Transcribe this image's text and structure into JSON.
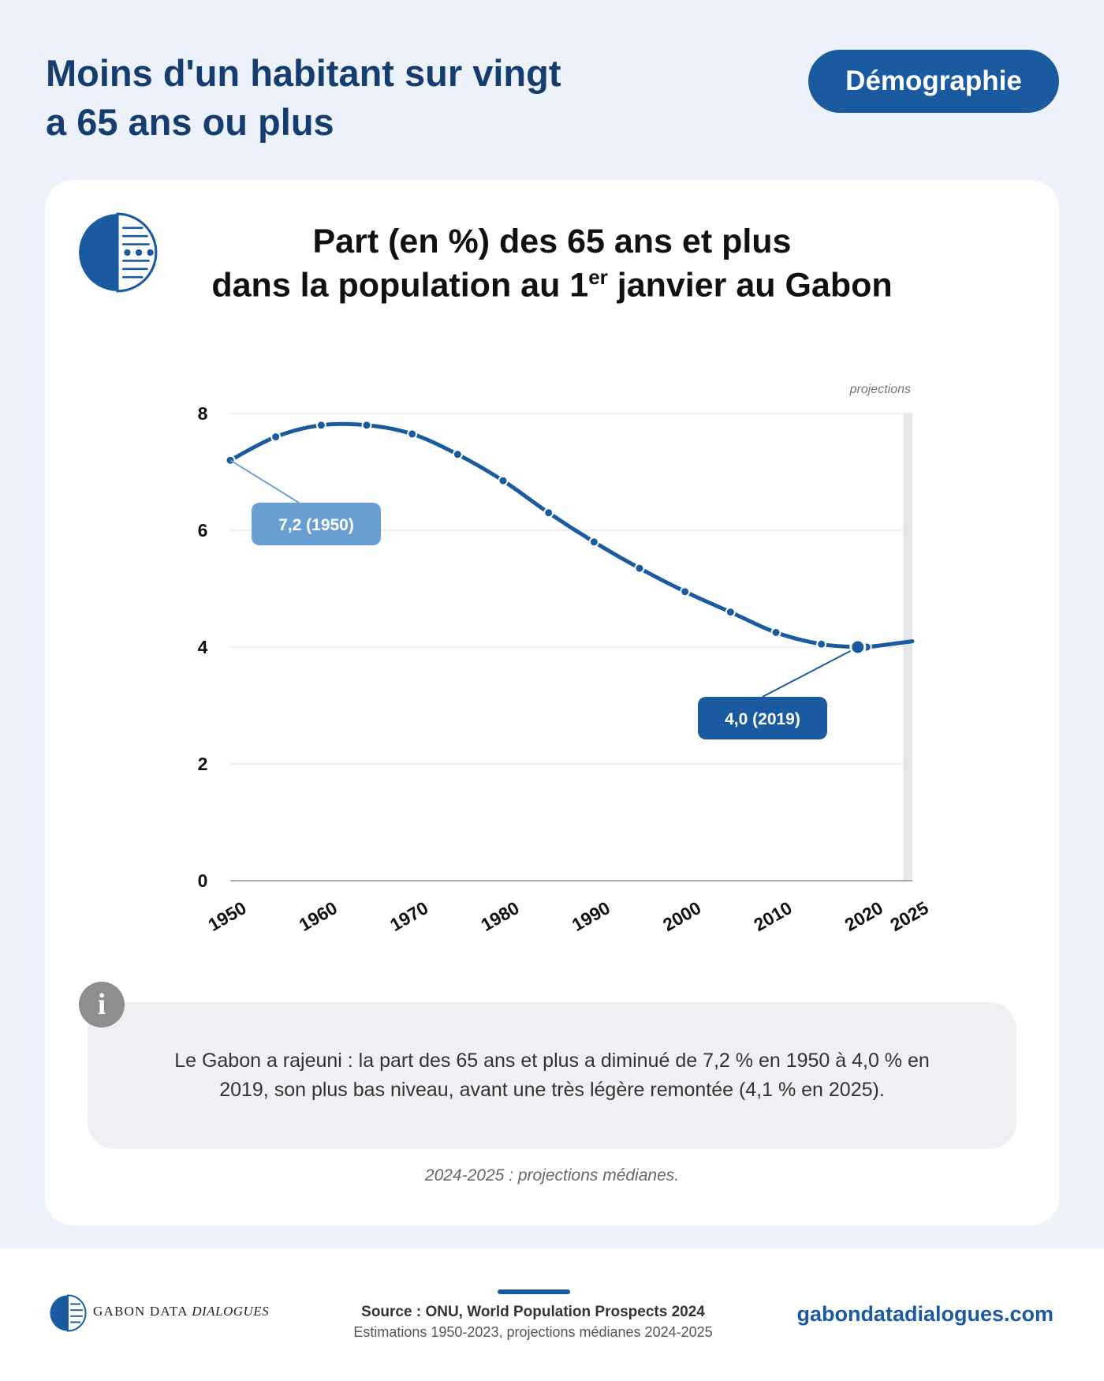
{
  "header": {
    "title_line1": "Moins d'un habitant sur vingt",
    "title_line2": "a 65 ans ou plus",
    "topic": "Démographie"
  },
  "chart_title": {
    "line1": "Part (en %) des 65 ans et plus",
    "line2_before": "dans la population au 1",
    "line2_sup": "er",
    "line2_after": " janvier au Gabon"
  },
  "chart_data": {
    "type": "line",
    "title": "Part (en %) des 65 ans et plus dans la population au 1er janvier au Gabon",
    "xlabel": "",
    "ylabel": "",
    "xlim": [
      1950,
      2025
    ],
    "ylim": [
      0,
      8
    ],
    "x_ticks": [
      "1950",
      "1960",
      "1970",
      "1980",
      "1990",
      "2000",
      "2010",
      "2020",
      "2025"
    ],
    "y_ticks": [
      "0",
      "2",
      "4",
      "6",
      "8"
    ],
    "grid": true,
    "projection_label": "projections",
    "projection_range": [
      2024,
      2025
    ],
    "series": [
      {
        "x": [
          1950,
          1955,
          1960,
          1965,
          1970,
          1975,
          1980,
          1985,
          1990,
          1995,
          2000,
          2005,
          2010,
          2015,
          2019,
          2020,
          2025
        ],
        "values": [
          7.2,
          7.6,
          7.8,
          7.8,
          7.65,
          7.3,
          6.85,
          6.3,
          5.8,
          5.35,
          4.95,
          4.6,
          4.25,
          4.05,
          4.0,
          4.0,
          4.1
        ],
        "marker_x": [
          1950,
          1955,
          1960,
          1965,
          1970,
          1975,
          1980,
          1985,
          1990,
          1995,
          2000,
          2005,
          2010,
          2015,
          2020
        ]
      }
    ],
    "annotations": [
      {
        "x": 1950,
        "y": 7.2,
        "label": "7,2 (1950)"
      },
      {
        "x": 2019,
        "y": 4.0,
        "label": "4,0 (2019)"
      }
    ],
    "colors": {
      "line": "#1a5aa0",
      "label_1950": "#6a9fd4",
      "label_2019": "#1a5aa0",
      "projection_band": "#e4e6ea"
    }
  },
  "info": {
    "icon": "info-icon",
    "text": "Le Gabon a rajeuni : la part des 65 ans et plus a diminué de 7,2 % en 1950 à 4,0 % en 2019, son plus bas niveau, avant une très légère remontée (4,1 % en 2025)."
  },
  "note": "2024-2025 : projections médianes.",
  "footer": {
    "brand_plain": "GABON DATA ",
    "brand_italic": "DIALOGUES",
    "source_main": "Source : ONU, World Population Prospects 2024",
    "source_sub": "Estimations 1950-2023, projections médianes 2024-2025",
    "website": "gabondatadialogues.com"
  },
  "colors": {
    "accent": "#1a5aa0",
    "title": "#153d6f",
    "background": "#edf2fa"
  }
}
